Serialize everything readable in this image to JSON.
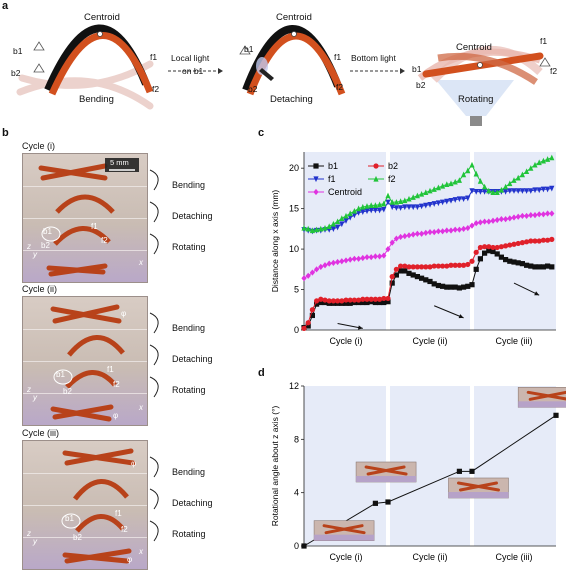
{
  "panel_a": {
    "letter": "a",
    "centroid_label": "Centroid",
    "b1": "b1",
    "b2": "b2",
    "f1": "f1",
    "f2": "f2",
    "step1_label": "Bending",
    "arrow1_label_line1": "Local light",
    "arrow1_label_line2": "on b1",
    "step2_label": "Detaching",
    "arrow2_label": "Bottom light",
    "step3_label": "Rotating",
    "colors": {
      "strip_orange": "#d2501e",
      "strip_black": "#111111",
      "faded": "#e6c7c2"
    }
  },
  "panel_b": {
    "letter": "b",
    "scale_bar": "5 mm",
    "cycles": [
      {
        "title": "Cycle (i)",
        "steps": [
          "Bending",
          "Detaching",
          "Rotating"
        ]
      },
      {
        "title": "Cycle (ii)",
        "steps": [
          "Bending",
          "Detaching",
          "Rotating"
        ]
      },
      {
        "title": "Cycle (iii)",
        "steps": [
          "Bending",
          "Detaching",
          "Rotating"
        ]
      }
    ],
    "photo_labels": {
      "b1": "b1",
      "b2": "b2",
      "f1": "f1",
      "f2": "f2",
      "phi": "φ",
      "x": "x",
      "y": "y",
      "z": "z"
    }
  },
  "chart_data": [
    {
      "panel": "c",
      "type": "line",
      "ylabel": "Distance along x axis (mm)",
      "ylim": [
        0,
        22
      ],
      "yticks": [
        0,
        5,
        10,
        15,
        20
      ],
      "xlim": [
        0,
        60
      ],
      "categories": [
        "Cycle (i)",
        "Cycle (ii)",
        "Cycle (iii)"
      ],
      "cycle_boundaries": [
        20,
        40
      ],
      "series": [
        {
          "name": "b1",
          "color": "#111111",
          "marker": "square",
          "x": [
            0,
            1,
            2,
            3,
            4,
            5,
            6,
            7,
            8,
            9,
            10,
            11,
            12,
            13,
            14,
            15,
            16,
            17,
            18,
            19,
            20,
            21,
            22,
            23,
            24,
            25,
            26,
            27,
            28,
            29,
            30,
            31,
            32,
            33,
            34,
            35,
            36,
            37,
            38,
            39,
            40,
            41,
            42,
            43,
            44,
            45,
            46,
            47,
            48,
            49,
            50,
            51,
            52,
            53,
            54,
            55,
            56,
            57,
            58,
            59
          ],
          "y": [
            0.3,
            0.5,
            1.8,
            3.2,
            3.4,
            3.4,
            3.3,
            3.3,
            3.3,
            3.3,
            3.3,
            3.3,
            3.4,
            3.4,
            3.4,
            3.4,
            3.5,
            3.4,
            3.4,
            3.4,
            3.5,
            5.8,
            6.8,
            7.3,
            7.3,
            7.0,
            6.8,
            6.6,
            6.4,
            6.2,
            6.0,
            5.7,
            5.5,
            5.4,
            5.3,
            5.3,
            5.3,
            5.2,
            5.3,
            5.4,
            5.6,
            7.5,
            8.8,
            9.5,
            9.8,
            9.7,
            9.4,
            9.0,
            8.7,
            8.5,
            8.4,
            8.3,
            8.2,
            8.0,
            7.9,
            7.8,
            7.8,
            7.8,
            7.9,
            7.8
          ]
        },
        {
          "name": "b2",
          "color": "#e0202a",
          "marker": "circle",
          "x": [
            0,
            1,
            2,
            3,
            4,
            5,
            6,
            7,
            8,
            9,
            10,
            11,
            12,
            13,
            14,
            15,
            16,
            17,
            18,
            19,
            20,
            21,
            22,
            23,
            24,
            25,
            26,
            27,
            28,
            29,
            30,
            31,
            32,
            33,
            34,
            35,
            36,
            37,
            38,
            39,
            40,
            41,
            42,
            43,
            44,
            45,
            46,
            47,
            48,
            49,
            50,
            51,
            52,
            53,
            54,
            55,
            56,
            57,
            58,
            59
          ],
          "y": [
            0.2,
            0.9,
            2.5,
            3.6,
            3.8,
            3.7,
            3.6,
            3.6,
            3.6,
            3.6,
            3.7,
            3.7,
            3.7,
            3.7,
            3.8,
            3.8,
            3.8,
            3.8,
            3.8,
            3.9,
            3.9,
            6.6,
            7.5,
            7.9,
            7.9,
            7.8,
            7.8,
            7.8,
            7.8,
            7.8,
            7.8,
            7.9,
            7.9,
            7.9,
            7.9,
            8.0,
            8.0,
            8.0,
            8.0,
            8.1,
            8.5,
            9.6,
            10.2,
            10.3,
            10.3,
            10.2,
            10.2,
            10.3,
            10.4,
            10.5,
            10.6,
            10.7,
            10.8,
            10.9,
            11.0,
            11.0,
            11.0,
            11.1,
            11.1,
            11.2
          ]
        },
        {
          "name": "f1",
          "color": "#2233cc",
          "marker": "triangle-down",
          "x": [
            0,
            1,
            2,
            3,
            4,
            5,
            6,
            7,
            8,
            9,
            10,
            11,
            12,
            13,
            14,
            15,
            16,
            17,
            18,
            19,
            20,
            21,
            22,
            23,
            24,
            25,
            26,
            27,
            28,
            29,
            30,
            31,
            32,
            33,
            34,
            35,
            36,
            37,
            38,
            39,
            40,
            41,
            42,
            43,
            44,
            45,
            46,
            47,
            48,
            49,
            50,
            51,
            52,
            53,
            54,
            55,
            56,
            57,
            58,
            59
          ],
          "y": [
            12.4,
            12.3,
            12.2,
            12.3,
            12.3,
            12.4,
            12.4,
            12.5,
            12.7,
            13.1,
            13.5,
            13.9,
            14.2,
            14.5,
            14.6,
            14.7,
            14.8,
            14.8,
            14.8,
            14.9,
            15.8,
            15.2,
            15.1,
            15.1,
            15.2,
            15.2,
            15.2,
            15.2,
            15.3,
            15.4,
            15.5,
            15.6,
            15.7,
            15.8,
            15.9,
            16.0,
            16.1,
            16.2,
            16.2,
            16.3,
            17.2,
            17.1,
            17.1,
            17.1,
            17.1,
            17.1,
            17.1,
            17.1,
            17.1,
            17.2,
            17.2,
            17.2,
            17.2,
            17.2,
            17.2,
            17.3,
            17.3,
            17.4,
            17.4,
            17.5
          ]
        },
        {
          "name": "f2",
          "color": "#21c43a",
          "marker": "triangle-up",
          "x": [
            0,
            1,
            2,
            3,
            4,
            5,
            6,
            7,
            8,
            9,
            10,
            11,
            12,
            13,
            14,
            15,
            16,
            17,
            18,
            19,
            20,
            21,
            22,
            23,
            24,
            25,
            26,
            27,
            28,
            29,
            30,
            31,
            32,
            33,
            34,
            35,
            36,
            37,
            38,
            39,
            40,
            41,
            42,
            43,
            44,
            45,
            46,
            47,
            48,
            49,
            50,
            51,
            52,
            53,
            54,
            55,
            56,
            57,
            58,
            59
          ],
          "y": [
            12.6,
            12.5,
            12.3,
            12.4,
            12.5,
            12.6,
            12.8,
            13.1,
            13.4,
            13.8,
            14.1,
            14.4,
            14.7,
            15.0,
            15.2,
            15.3,
            15.4,
            15.4,
            15.5,
            15.6,
            16.6,
            15.8,
            15.8,
            15.9,
            16.0,
            16.2,
            16.4,
            16.6,
            16.8,
            17.0,
            17.2,
            17.4,
            17.6,
            17.8,
            18.0,
            18.1,
            18.3,
            18.5,
            19.2,
            19.7,
            20.4,
            19.3,
            18.4,
            17.7,
            17.2,
            17.0,
            17.0,
            17.3,
            17.7,
            18.1,
            18.5,
            18.8,
            19.2,
            19.6,
            20.0,
            20.4,
            20.7,
            20.9,
            21.1,
            21.3
          ]
        },
        {
          "name": "Centroid",
          "color": "#e033e0",
          "marker": "diamond",
          "x": [
            0,
            1,
            2,
            3,
            4,
            5,
            6,
            7,
            8,
            9,
            10,
            11,
            12,
            13,
            14,
            15,
            16,
            17,
            18,
            19,
            20,
            21,
            22,
            23,
            24,
            25,
            26,
            27,
            28,
            29,
            30,
            31,
            32,
            33,
            34,
            35,
            36,
            37,
            38,
            39,
            40,
            41,
            42,
            43,
            44,
            45,
            46,
            47,
            48,
            49,
            50,
            51,
            52,
            53,
            54,
            55,
            56,
            57,
            58,
            59
          ],
          "y": [
            6.4,
            6.7,
            7.1,
            7.5,
            7.8,
            8.0,
            8.2,
            8.3,
            8.4,
            8.5,
            8.6,
            8.7,
            8.8,
            8.8,
            8.9,
            9.0,
            9.0,
            9.1,
            9.1,
            9.2,
            10.0,
            10.8,
            11.3,
            11.5,
            11.6,
            11.7,
            11.8,
            11.9,
            11.9,
            12.0,
            12.1,
            12.1,
            12.2,
            12.2,
            12.3,
            12.3,
            12.4,
            12.4,
            12.5,
            12.6,
            12.9,
            13.2,
            13.3,
            13.4,
            13.4,
            13.5,
            13.6,
            13.7,
            13.7,
            13.8,
            13.9,
            14.0,
            14.1,
            14.1,
            14.2,
            14.2,
            14.3,
            14.3,
            14.4,
            14.4
          ]
        }
      ]
    },
    {
      "panel": "d",
      "type": "line",
      "ylabel": "Rotational angle about z axis (°)",
      "ylim": [
        0,
        12
      ],
      "yticks": [
        0,
        4,
        8,
        12
      ],
      "xlim": [
        0,
        3
      ],
      "categories": [
        "Cycle (i)",
        "Cycle (ii)",
        "Cycle (iii)"
      ],
      "cycle_boundaries": [
        1,
        2
      ],
      "series": [
        {
          "color": "#111111",
          "marker": "square",
          "x": [
            0.0,
            0.85,
            1.0,
            1.85,
            2.0,
            3.0
          ],
          "y": [
            0.0,
            3.2,
            3.3,
            5.6,
            5.6,
            9.8
          ]
        }
      ]
    }
  ],
  "panel_c": {
    "letter": "c"
  },
  "panel_d": {
    "letter": "d"
  }
}
